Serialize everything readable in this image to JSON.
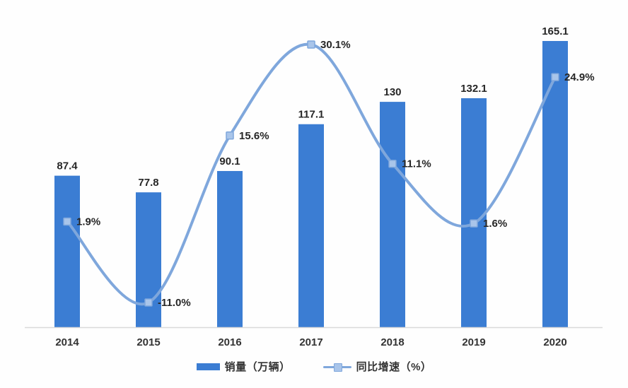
{
  "chart_data": {
    "type": "bar+line",
    "title": "",
    "categories": [
      "2014",
      "2015",
      "2016",
      "2017",
      "2018",
      "2019",
      "2020"
    ],
    "series": [
      {
        "name": "销量（万辆）",
        "type": "bar",
        "values": [
          87.4,
          77.8,
          90.1,
          117.1,
          130,
          132.1,
          165.1
        ],
        "labels": [
          "87.4",
          "77.8",
          "90.1",
          "117.1",
          "130",
          "132.1",
          "165.1"
        ],
        "color": "#3b7dd3"
      },
      {
        "name": "同比增速（%）",
        "type": "line",
        "values": [
          1.9,
          -11.0,
          15.6,
          30.1,
          11.1,
          1.6,
          24.9
        ],
        "labels": [
          "1.9%",
          "-11.0%",
          "15.6%",
          "30.1%",
          "11.1%",
          "1.6%",
          "24.9%"
        ],
        "color": "#7fa7dc",
        "marker_fill": "#a9c5ea",
        "smooth": true
      }
    ],
    "bar_axis_range": [
      0,
      165.1
    ],
    "line_axis_range": [
      -11.0,
      30.1
    ],
    "grid": false,
    "legend_position": "bottom",
    "data_labels": "shown"
  },
  "style": {
    "background": "#fefefe",
    "axis_line_color": "#d9d9d9",
    "label_color": "#262626",
    "tick_label_color": "#333333"
  }
}
